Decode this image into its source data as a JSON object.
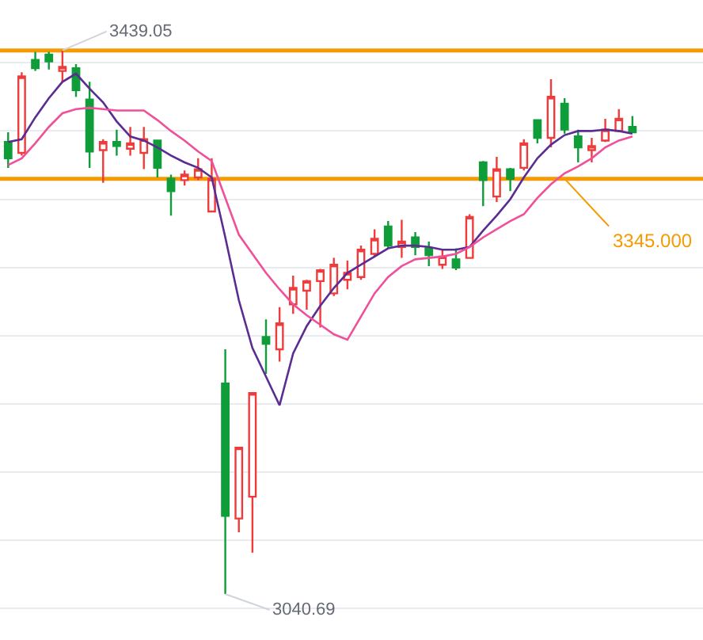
{
  "chart_data": {
    "type": "candlestick",
    "categories": [
      null,
      null,
      null,
      null,
      null,
      null,
      null,
      null,
      null,
      null,
      null,
      null,
      null,
      null,
      null,
      null,
      null,
      null,
      null,
      null,
      null,
      null,
      null,
      null,
      null,
      null,
      null,
      null,
      null,
      null,
      null,
      null,
      null,
      null,
      null,
      null,
      null,
      null,
      null,
      null,
      null,
      null,
      null,
      null,
      null,
      null,
      null
    ],
    "ohlc": [
      [
        3372,
        3379,
        3353,
        3360
      ],
      [
        3364,
        3423,
        3362,
        3420
      ],
      [
        3432,
        3438,
        3424,
        3426
      ],
      [
        3436,
        3438,
        3425,
        3431
      ],
      [
        3424,
        3439.05,
        3416,
        3427
      ],
      [
        3426,
        3429,
        3405,
        3410
      ],
      [
        3403,
        3416,
        3353,
        3365
      ],
      [
        3366,
        3374,
        3342,
        3372
      ],
      [
        3372,
        3381,
        3362,
        3369
      ],
      [
        3367,
        3383,
        3362,
        3371
      ],
      [
        3364,
        3383,
        3352,
        3374
      ],
      [
        3373,
        3373,
        3346,
        3353
      ],
      [
        3345,
        3348,
        3318,
        3336
      ],
      [
        3344,
        3351,
        3340,
        3348
      ],
      [
        3346,
        3360,
        3344,
        3352
      ],
      [
        3321,
        3360,
        3321,
        3345
      ],
      [
        3195,
        3220,
        3040.69,
        3098
      ],
      [
        3096,
        3148,
        3086,
        3148
      ],
      [
        3112,
        3188,
        3071,
        3188
      ],
      [
        3229,
        3242,
        3202,
        3224
      ],
      [
        3220,
        3251,
        3211,
        3239
      ],
      [
        3253,
        3274,
        3246,
        3265
      ],
      [
        3263,
        3271,
        3249,
        3270
      ],
      [
        3270,
        3279,
        3236,
        3278
      ],
      [
        3261,
        3287,
        3259,
        3282
      ],
      [
        3271,
        3285,
        3264,
        3276
      ],
      [
        3273,
        3296,
        3271,
        3293
      ],
      [
        3290,
        3308,
        3288,
        3301
      ],
      [
        3310,
        3314,
        3294,
        3296
      ],
      [
        3295,
        3315,
        3287,
        3299
      ],
      [
        3302,
        3306,
        3289,
        3295
      ],
      [
        3294,
        3299,
        3281,
        3289
      ],
      [
        3282,
        3293,
        3279,
        3288
      ],
      [
        3286,
        3294,
        3278,
        3280
      ],
      [
        3287,
        3319,
        3287,
        3317
      ],
      [
        3357,
        3358,
        3325,
        3344
      ],
      [
        3332,
        3361,
        3328,
        3352
      ],
      [
        3352,
        3353,
        3336,
        3345
      ],
      [
        3353,
        3374,
        3351,
        3371
      ],
      [
        3388,
        3388,
        3371,
        3375
      ],
      [
        3375,
        3418,
        3368,
        3405
      ],
      [
        3400,
        3404,
        3378,
        3381
      ],
      [
        3376,
        3381,
        3357,
        3368
      ],
      [
        3366,
        3375,
        3357,
        3369
      ],
      [
        3373,
        3389,
        3372,
        3381
      ],
      [
        3380,
        3396,
        3379,
        3389
      ],
      [
        3383,
        3391,
        3379,
        3379
      ]
    ],
    "colors": [
      "#0f9d3a",
      "#ef3b3b",
      "#0f9d3a",
      "#0f9d3a",
      "#ef3b3b",
      "#0f9d3a",
      "#0f9d3a",
      "#ef3b3b",
      "#0f9d3a",
      "#ef3b3b",
      "#ef3b3b",
      "#0f9d3a",
      "#0f9d3a",
      "#ef3b3b",
      "#ef3b3b",
      "#ef3b3b",
      "#0f9d3a",
      "#ef3b3b",
      "#ef3b3b",
      "#0f9d3a",
      "#ef3b3b",
      "#ef3b3b",
      "#ef3b3b",
      "#ef3b3b",
      "#ef3b3b",
      "#ef3b3b",
      "#ef3b3b",
      "#ef3b3b",
      "#0f9d3a",
      "#ef3b3b",
      "#0f9d3a",
      "#0f9d3a",
      "#ef3b3b",
      "#0f9d3a",
      "#ef3b3b",
      "#0f9d3a",
      "#ef3b3b",
      "#0f9d3a",
      "#ef3b3b",
      "#0f9d3a",
      "#ef3b3b",
      "#0f9d3a",
      "#0f9d3a",
      "#ef3b3b",
      "#ef3b3b",
      "#ef3b3b",
      "#0f9d3a"
    ],
    "series": [
      {
        "type": "line",
        "color": "#5b2c91",
        "values": [
          3372,
          3374,
          3390,
          3404,
          3416,
          3422,
          3411,
          3401,
          3387,
          3376,
          3373,
          3368,
          3362,
          3357,
          3353,
          3346,
          3302,
          3256,
          3221,
          3200,
          3179,
          3217,
          3237,
          3252,
          3265,
          3276,
          3282,
          3288,
          3294,
          3296,
          3296,
          3295,
          3293,
          3293,
          3295,
          3307,
          3318,
          3330,
          3346,
          3360,
          3370,
          3377,
          3380,
          3380,
          3381,
          3380,
          3378
        ]
      },
      {
        "type": "line",
        "color": "#f0509a",
        "values": [
          3355,
          3360,
          3371,
          3383,
          3393,
          3396,
          3397,
          3396,
          3395,
          3395,
          3395,
          3388,
          3380,
          3373,
          3365,
          3358,
          3331,
          3304,
          3290,
          3276,
          3264,
          3253,
          3245,
          3238,
          3231,
          3227,
          3244,
          3261,
          3273,
          3281,
          3286,
          3287,
          3288,
          3290,
          3295,
          3302,
          3308,
          3314,
          3319,
          3331,
          3341,
          3349,
          3354,
          3360,
          3368,
          3373,
          3376
        ]
      }
    ],
    "ylim": [
      3007,
      3476
    ],
    "yticks": [
      {
        "value": 3430,
        "label": null
      },
      {
        "value": 3380,
        "label": null
      },
      {
        "value": 3330,
        "label": null
      },
      {
        "value": 3280,
        "label": null
      },
      {
        "value": 3230,
        "label": null
      },
      {
        "value": 3180,
        "label": null
      },
      {
        "value": 3130,
        "label": null
      },
      {
        "value": 3080,
        "label": null
      },
      {
        "value": 3030,
        "label": null
      }
    ],
    "grid": "y",
    "ref_lines": [
      {
        "axis": "y",
        "value": 3439.05,
        "color": "#f59a00"
      },
      {
        "axis": "y",
        "value": 3345,
        "label": "3345.000",
        "color": "#f59a00"
      }
    ],
    "annotations": [
      "3439.05",
      "3040.69"
    ]
  }
}
